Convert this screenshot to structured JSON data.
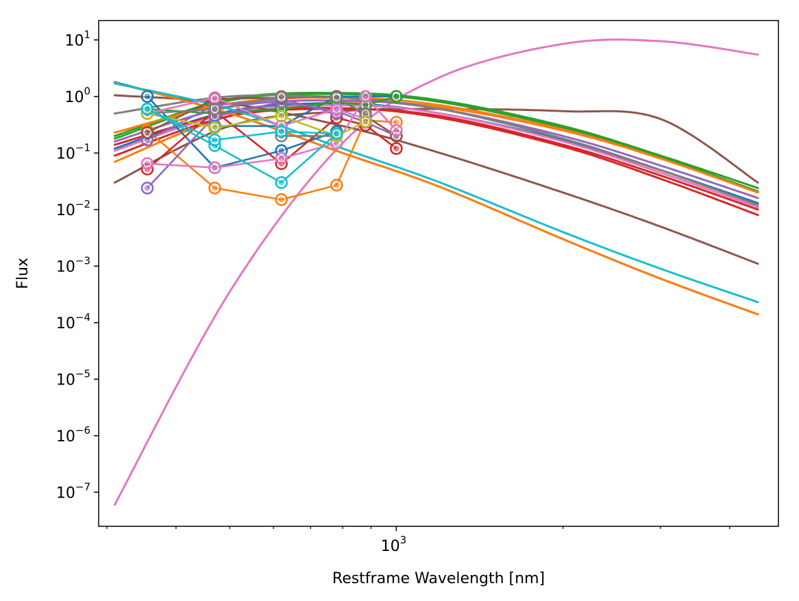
{
  "chart_data": {
    "type": "line",
    "title": "",
    "xlabel": "Restframe Wavelength [nm]",
    "ylabel": "Flux",
    "xscale": "log",
    "yscale": "log",
    "xlim": [
      290,
      4900
    ],
    "ylim": [
      2.5e-08,
      22
    ],
    "grid": false,
    "legend": "none",
    "x_ticks": [
      {
        "value": 1000,
        "base": "10",
        "exp": "3"
      }
    ],
    "x_minor_ticks": [
      300,
      400,
      500,
      600,
      700,
      800,
      900,
      2000,
      3000,
      4000
    ],
    "y_ticks": [
      {
        "value": 10,
        "base": "10",
        "exp": "1"
      },
      {
        "value": 1,
        "base": "10",
        "exp": "0"
      },
      {
        "value": 0.1,
        "base": "10",
        "exp": "−1"
      },
      {
        "value": 0.01,
        "base": "10",
        "exp": "−2"
      },
      {
        "value": 0.001,
        "base": "10",
        "exp": "−3"
      },
      {
        "value": 0.0001,
        "base": "10",
        "exp": "−4"
      },
      {
        "value": 1e-05,
        "base": "10",
        "exp": "−5"
      },
      {
        "value": 1e-06,
        "base": "10",
        "exp": "−6"
      },
      {
        "value": 1e-07,
        "base": "10",
        "exp": "−7"
      }
    ],
    "colors": [
      "#1f77b4",
      "#ff7f0e",
      "#2ca02c",
      "#d62728",
      "#9467bd",
      "#8c564b",
      "#e377c2",
      "#7f7f7f",
      "#bcbd22",
      "#17becf"
    ],
    "curves": [
      {
        "color": "#e377c2",
        "x": [
          310,
          500,
          800,
          1200,
          2000,
          3000,
          4500
        ],
        "y": [
          6e-08,
          0.00035,
          0.15,
          2.2,
          8.5,
          9.5,
          5.5
        ]
      },
      {
        "color": "#8c564b",
        "x": [
          310,
          500,
          800,
          1200,
          2000,
          3000,
          4500
        ],
        "y": [
          0.03,
          0.3,
          0.55,
          0.6,
          0.55,
          0.4,
          0.03
        ]
      },
      {
        "color": "#2ca02c",
        "x": [
          310,
          500,
          800,
          1200,
          2000,
          3000,
          4500
        ],
        "y": [
          0.2,
          0.9,
          1.15,
          0.85,
          0.3,
          0.09,
          0.024
        ]
      },
      {
        "color": "#2ca02c",
        "x": [
          310,
          500,
          800,
          1200,
          2000,
          3000,
          4500
        ],
        "y": [
          0.18,
          0.85,
          1.1,
          0.8,
          0.28,
          0.085,
          0.021
        ]
      },
      {
        "color": "#ff7f0e",
        "x": [
          310,
          500,
          800,
          1200,
          2000,
          3000,
          4500
        ],
        "y": [
          0.23,
          0.75,
          0.95,
          0.7,
          0.26,
          0.08,
          0.02
        ]
      },
      {
        "color": "#ff7f0e",
        "x": [
          310,
          500,
          800,
          1200,
          2000,
          3000,
          4500
        ],
        "y": [
          0.07,
          0.45,
          0.8,
          0.65,
          0.25,
          0.08,
          0.02
        ]
      },
      {
        "color": "#9467bd",
        "x": [
          310,
          500,
          800,
          1200,
          2000,
          3000,
          4500
        ],
        "y": [
          0.16,
          0.65,
          0.85,
          0.6,
          0.2,
          0.06,
          0.016
        ]
      },
      {
        "color": "#1f77b4",
        "x": [
          310,
          500,
          800,
          1200,
          2000,
          3000,
          4500
        ],
        "y": [
          0.12,
          0.55,
          0.75,
          0.5,
          0.17,
          0.05,
          0.013
        ]
      },
      {
        "color": "#d62728",
        "x": [
          310,
          500,
          800,
          1200,
          2000,
          3000,
          4500
        ],
        "y": [
          0.09,
          0.45,
          0.6,
          0.45,
          0.14,
          0.04,
          0.01
        ]
      },
      {
        "color": "#d62728",
        "x": [
          310,
          500,
          800,
          1200,
          2000,
          3000,
          4500
        ],
        "y": [
          0.14,
          0.5,
          0.62,
          0.42,
          0.13,
          0.035,
          0.008
        ]
      },
      {
        "color": "#e377c2",
        "x": [
          310,
          500,
          800,
          1200,
          2000,
          3000,
          4500
        ],
        "y": [
          0.11,
          0.5,
          0.7,
          0.5,
          0.16,
          0.045,
          0.011
        ]
      },
      {
        "color": "#7f7f7f",
        "x": [
          310,
          500,
          800,
          1200,
          2000,
          3000,
          4500
        ],
        "y": [
          0.5,
          1.0,
          0.95,
          0.6,
          0.18,
          0.05,
          0.012
        ]
      },
      {
        "color": "#8c564b",
        "x": [
          310,
          500,
          800,
          1200,
          2000,
          3000,
          4500
        ],
        "y": [
          1.05,
          0.75,
          0.3,
          0.1,
          0.02,
          0.005,
          0.0011
        ]
      },
      {
        "color": "#1f77b4",
        "x": [
          310,
          500,
          800,
          1200,
          2000,
          3000,
          4500
        ],
        "y": [
          1.8,
          0.5,
          0.1,
          0.025,
          0.003,
          0.0006,
          0.00014
        ]
      },
      {
        "color": "#ff7f0e",
        "x": [
          310,
          500,
          800,
          1200,
          2000,
          3000,
          4500
        ],
        "y": [
          1.75,
          0.5,
          0.1,
          0.025,
          0.003,
          0.0006,
          0.00014
        ]
      },
      {
        "color": "#17becf",
        "x": [
          310,
          500,
          800,
          1200,
          2000,
          3000,
          4500
        ],
        "y": [
          1.7,
          0.6,
          0.12,
          0.03,
          0.004,
          0.0009,
          0.00023
        ]
      }
    ],
    "observations": [
      {
        "color": "#1f77b4",
        "x": [
          355,
          470,
          620,
          780
        ],
        "y": [
          1.0,
          0.055,
          0.11,
          0.24
        ]
      },
      {
        "color": "#1f77b4",
        "x": [
          470,
          620,
          780,
          1000
        ],
        "y": [
          0.3,
          0.3,
          1.0,
          1.0
        ]
      },
      {
        "color": "#ff7f0e",
        "x": [
          355,
          470,
          620,
          780,
          880,
          1000
        ],
        "y": [
          0.25,
          0.024,
          0.015,
          0.027,
          0.38,
          0.35
        ]
      },
      {
        "color": "#2ca02c",
        "x": [
          355,
          470,
          620,
          780,
          880,
          1000
        ],
        "y": [
          0.6,
          0.5,
          0.6,
          0.8,
          0.7,
          1.0
        ]
      },
      {
        "color": "#d62728",
        "x": [
          355,
          470,
          620,
          780,
          880,
          1000
        ],
        "y": [
          0.052,
          0.55,
          0.065,
          0.42,
          0.31,
          0.12
        ]
      },
      {
        "color": "#9467bd",
        "x": [
          355,
          470,
          620,
          780,
          880,
          1000
        ],
        "y": [
          0.024,
          0.45,
          0.8,
          0.55,
          0.35,
          0.2
        ]
      },
      {
        "color": "#9467bd",
        "x": [
          355,
          470,
          620,
          780
        ],
        "y": [
          0.17,
          0.7,
          0.9,
          0.5
        ]
      },
      {
        "color": "#8c564b",
        "x": [
          355,
          470,
          620,
          780,
          880,
          1000
        ],
        "y": [
          0.23,
          0.9,
          0.95,
          1.0,
          0.45,
          0.2
        ]
      },
      {
        "color": "#e377c2",
        "x": [
          355,
          470,
          620,
          780,
          880,
          1000
        ],
        "y": [
          0.065,
          0.055,
          0.08,
          0.15,
          1.0,
          0.25
        ]
      },
      {
        "color": "#e377c2",
        "x": [
          355,
          470,
          620,
          780,
          880
        ],
        "y": [
          0.5,
          0.95,
          0.3,
          0.6,
          0.4
        ]
      },
      {
        "color": "#7f7f7f",
        "x": [
          355,
          470,
          620,
          780,
          880
        ],
        "y": [
          0.5,
          0.6,
          1.0,
          0.95,
          0.5
        ]
      },
      {
        "color": "#7f7f7f",
        "x": [
          620,
          780
        ],
        "y": [
          0.2,
          0.2
        ]
      },
      {
        "color": "#bcbd22",
        "x": [
          355,
          470,
          620,
          780,
          880
        ],
        "y": [
          0.5,
          0.28,
          0.45,
          0.2,
          0.36
        ]
      },
      {
        "color": "#17becf",
        "x": [
          355,
          470,
          620,
          780
        ],
        "y": [
          0.6,
          0.135,
          0.03,
          0.22
        ]
      },
      {
        "color": "#17becf",
        "x": [
          355,
          470,
          620,
          780
        ],
        "y": [
          0.6,
          0.17,
          0.24,
          0.22
        ]
      }
    ]
  }
}
